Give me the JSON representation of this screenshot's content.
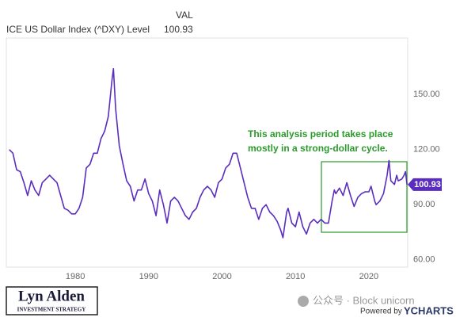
{
  "chart_data": {
    "type": "line",
    "header_column": "VAL",
    "header_value": "100.93",
    "annotation": [
      "This analysis period takes place",
      "mostly in a strong-dollar cycle."
    ],
    "x": [
      1971.0,
      1971.5,
      1972.0,
      1972.5,
      1973.0,
      1973.5,
      1974.0,
      1974.5,
      1975.0,
      1975.5,
      1976.0,
      1976.5,
      1977.0,
      1977.5,
      1978.0,
      1978.5,
      1979.0,
      1979.5,
      1980.0,
      1980.5,
      1981.0,
      1981.5,
      1982.0,
      1982.5,
      1983.0,
      1983.5,
      1984.0,
      1984.5,
      1985.0,
      1985.2,
      1985.5,
      1986.0,
      1986.5,
      1987.0,
      1987.5,
      1988.0,
      1988.5,
      1989.0,
      1989.5,
      1990.0,
      1990.5,
      1991.0,
      1991.5,
      1992.0,
      1992.5,
      1993.0,
      1993.5,
      1994.0,
      1994.5,
      1995.0,
      1995.5,
      1996.0,
      1996.5,
      1997.0,
      1997.5,
      1998.0,
      1998.5,
      1999.0,
      1999.5,
      2000.0,
      2000.5,
      2001.0,
      2001.5,
      2002.0,
      2002.5,
      2003.0,
      2003.5,
      2004.0,
      2004.5,
      2005.0,
      2005.5,
      2006.0,
      2006.5,
      2007.0,
      2007.5,
      2008.0,
      2008.3,
      2008.8,
      2009.0,
      2009.5,
      2010.0,
      2010.5,
      2011.0,
      2011.5,
      2012.0,
      2012.5,
      2013.0,
      2013.5,
      2014.0,
      2014.5,
      2015.0,
      2015.3,
      2015.5,
      2016.0,
      2016.5,
      2017.0,
      2017.5,
      2018.0,
      2018.5,
      2019.0,
      2019.5,
      2020.0,
      2020.3,
      2020.8,
      2021.0,
      2021.5,
      2022.0,
      2022.5,
      2022.75,
      2023.0,
      2023.5,
      2023.8,
      2024.0,
      2024.5,
      2024.8,
      2025.0,
      2025.2
    ],
    "series": [
      {
        "name": "ICE US Dollar Index (^DXY) Level",
        "color": "#5a2dbe",
        "values": [
          120,
          118,
          109,
          108,
          102,
          95,
          103,
          98,
          95,
          102,
          104,
          106,
          104,
          102,
          95,
          88,
          87,
          85,
          85,
          88,
          94,
          110,
          112,
          118,
          118,
          126,
          130,
          138,
          158,
          164,
          142,
          122,
          112,
          103,
          100,
          92,
          98,
          98,
          104,
          96,
          92,
          84,
          98,
          90,
          80,
          92,
          94,
          92,
          88,
          84,
          82,
          86,
          88,
          94,
          98,
          100,
          98,
          94,
          102,
          104,
          110,
          112,
          118,
          118,
          110,
          102,
          94,
          88,
          88,
          82,
          88,
          90,
          86,
          84,
          81,
          76,
          72,
          86,
          88,
          80,
          78,
          86,
          78,
          74,
          80,
          82,
          80,
          82,
          80,
          80,
          92,
          98,
          96,
          99,
          95,
          102,
          95,
          89,
          94,
          96,
          97,
          97,
          100,
          92,
          90,
          92,
          96,
          106,
          114,
          103,
          101,
          106,
          103,
          104,
          106,
          108,
          100.93
        ]
      }
    ],
    "xlim": [
      1970.6,
      2025.3
    ],
    "ylim": [
      56,
      180.7
    ],
    "xticks": [
      1980,
      1990,
      2000,
      2010,
      2020
    ],
    "yticks": [
      {
        "value": 60,
        "label": "60.00"
      },
      {
        "value": 90,
        "label": "90.00"
      },
      {
        "value": 120,
        "label": "120.00"
      },
      {
        "value": 150,
        "label": "150.00"
      }
    ],
    "grid": false
  },
  "branding": {
    "logo_name": "Lyn Alden",
    "logo_tagline": "INVESTMENT STRATEGY",
    "watermark": "公众号 · Block unicorn",
    "powered_by": "Powered by",
    "provider": "YCHARTS"
  }
}
